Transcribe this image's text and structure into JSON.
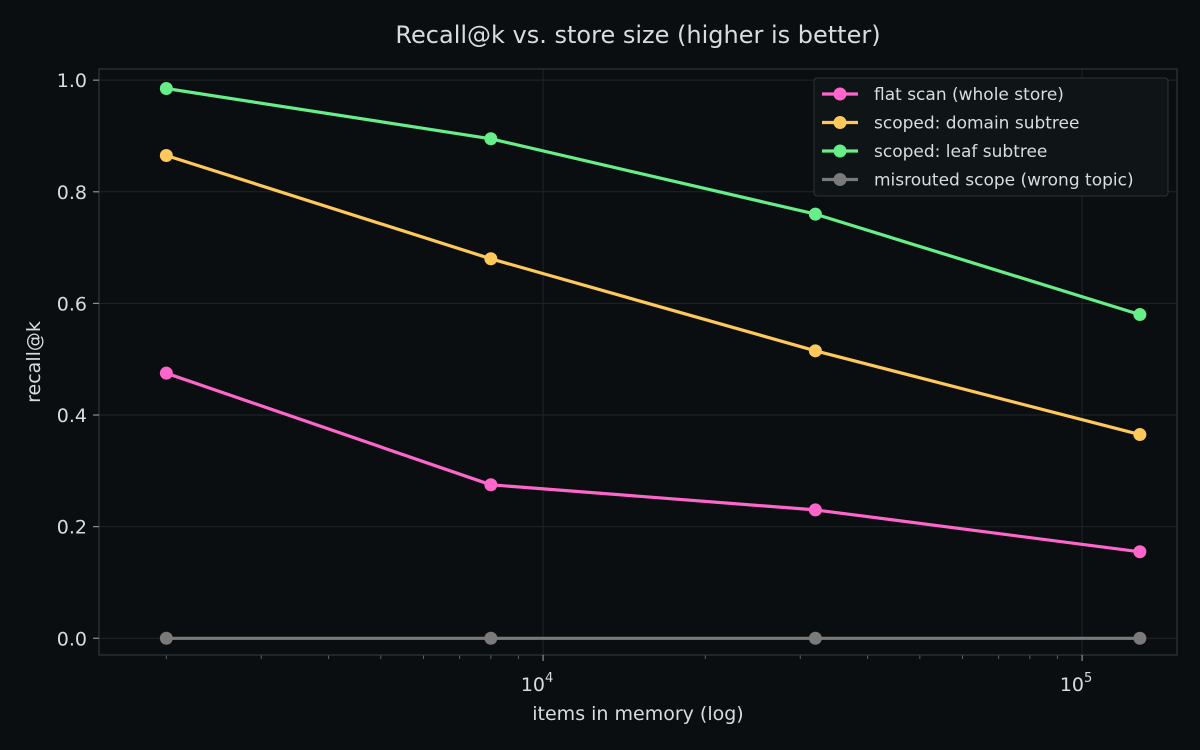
{
  "chart_data": {
    "type": "line",
    "title": "Recall@k vs. store size (higher is better)",
    "xlabel": "items in memory (log)",
    "ylabel": "recall@k",
    "xscale": "log",
    "xlim": [
      1500,
      150000
    ],
    "ylim": [
      -0.03,
      1.02
    ],
    "grid": true,
    "legend_position": "top-right",
    "xticks": [
      {
        "value": 10000,
        "base": "10",
        "exp": "4"
      },
      {
        "value": 100000,
        "base": "10",
        "exp": "5"
      }
    ],
    "yticks": [
      {
        "value": 0.0,
        "label": "0.0"
      },
      {
        "value": 0.2,
        "label": "0.2"
      },
      {
        "value": 0.4,
        "label": "0.4"
      },
      {
        "value": 0.6,
        "label": "0.6"
      },
      {
        "value": 0.8,
        "label": "0.8"
      },
      {
        "value": 1.0,
        "label": "1.0"
      }
    ],
    "x": [
      2000,
      8000,
      32000,
      128000
    ],
    "series": [
      {
        "name": "flat scan (whole store)",
        "color": "#ff66cc",
        "values": [
          0.475,
          0.275,
          0.23,
          0.155
        ]
      },
      {
        "name": "scoped: domain subtree",
        "color": "#ffc85a",
        "values": [
          0.865,
          0.68,
          0.515,
          0.365
        ]
      },
      {
        "name": "scoped: leaf subtree",
        "color": "#66ee88",
        "values": [
          0.985,
          0.895,
          0.76,
          0.58
        ]
      },
      {
        "name": "misrouted scope (wrong topic)",
        "color": "#7a7a7a",
        "values": [
          0.0,
          0.0,
          0.0,
          0.0
        ]
      }
    ]
  }
}
